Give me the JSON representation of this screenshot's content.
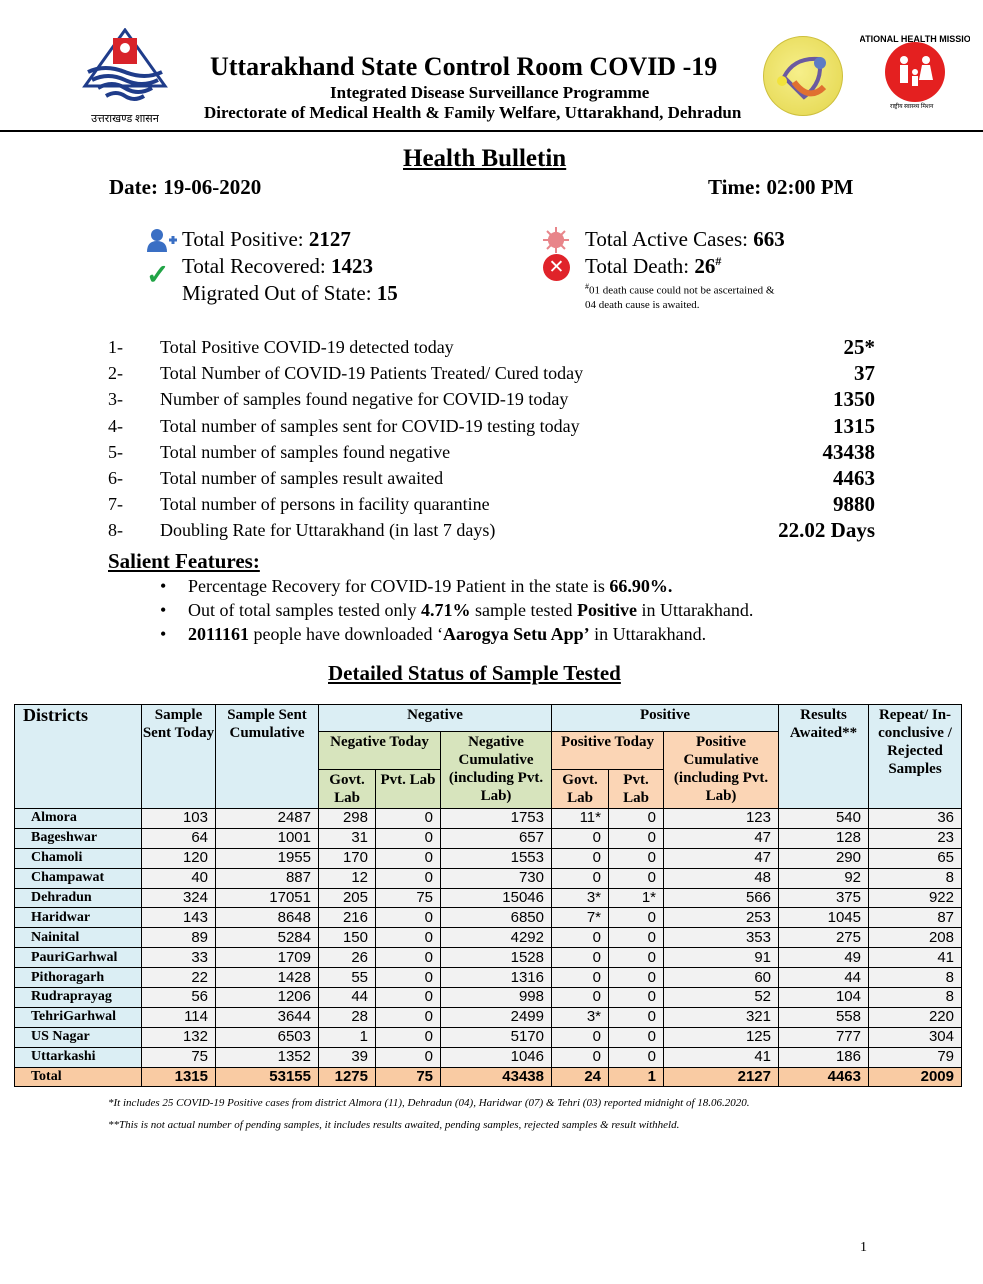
{
  "header": {
    "title": "Uttarakhand State Control Room COVID -19",
    "subtitle1": "Integrated Disease Surveillance Programme",
    "subtitle2": "Directorate of Medical Health & Family Welfare, Uttarakhand, Dehradun",
    "left_logo_caption": "उत्तराखण्ड शासन",
    "nhm_logo_text": "NATIONAL HEALTH MISSION",
    "nhm_logo_caption": "राष्ट्रीय स्वास्थ्य मिशन"
  },
  "bulletin": {
    "title": "Health Bulletin",
    "date": "Date: 19-06-2020",
    "time": "Time: 02:00 PM"
  },
  "summary": {
    "total_positive_label": "Total Positive: ",
    "total_positive": "2127",
    "total_recovered_label": "Total Recovered: ",
    "total_recovered": "1423",
    "migrated_label": "Migrated Out of State: ",
    "migrated": "15",
    "active_label": "Total Active Cases: ",
    "active": "663",
    "death_label": "Total Death: ",
    "death": "26",
    "death_mark": "#",
    "death_note_mark": "#",
    "death_note1": "01 death cause could  not be ascertained &",
    "death_note2": "04 death cause is awaited."
  },
  "stats": [
    {
      "num": "1-",
      "text": "Total Positive COVID-19 detected today",
      "value": "25*"
    },
    {
      "num": "2-",
      "text": "Total Number of COVID-19 Patients Treated/ Cured today",
      "value": "37"
    },
    {
      "num": "3-",
      "text": "Number of samples found negative for COVID-19 today",
      "value": "1350"
    },
    {
      "num": "4-",
      "text": "Total number of samples sent for COVID-19 testing today",
      "value": "1315"
    },
    {
      "num": "5-",
      "text": "Total number of samples found negative",
      "value": "43438"
    },
    {
      "num": "6-",
      "text": "Total number of samples result awaited",
      "value": "4463"
    },
    {
      "num": "7-",
      "text": "Total number of persons in facility quarantine",
      "value": "9880"
    },
    {
      "num": "8-",
      "text": "Doubling Rate for Uttarakhand (in last 7 days)",
      "value": "22.02 Days"
    }
  ],
  "salient": {
    "title": "Salient Features:",
    "items": [
      {
        "a": "Percentage Recovery for COVID-19 Patient in the state is ",
        "b": "66.90%.",
        "c": "",
        "d": "",
        "e": ""
      },
      {
        "a": "Out of total samples tested only ",
        "b": "4.71%",
        "c": " sample tested ",
        "d": "Positive",
        "e": " in Uttarakhand."
      },
      {
        "a": "",
        "b": "2011161",
        "c": " people have downloaded ‘",
        "d": "Aarogya Setu App’",
        "e": " in Uttarakhand."
      }
    ]
  },
  "table": {
    "title": "Detailed Status of Sample Tested",
    "headers": {
      "districts": "Districts",
      "sent_today": "Sample Sent Today",
      "sent_cum": "Sample Sent Cumulative",
      "negative": "Negative",
      "neg_today": "Negative Today",
      "neg_cum": "Negative Cumulative (including Pvt. Lab)",
      "positive": "Positive",
      "pos_today": "Positive Today",
      "pos_cum": "Positive Cumulative (including Pvt. Lab)",
      "govt": "Govt. Lab",
      "pvt": "Pvt. Lab",
      "awaited": "Results Awaited**",
      "repeat": "Repeat/ In-conclusive / Rejected Samples"
    },
    "rows": [
      [
        "Almora",
        "103",
        "2487",
        "298",
        "0",
        "1753",
        "11*",
        "0",
        "123",
        "540",
        "36"
      ],
      [
        "Bageshwar",
        "64",
        "1001",
        "31",
        "0",
        "657",
        "0",
        "0",
        "47",
        "128",
        "23"
      ],
      [
        "Chamoli",
        "120",
        "1955",
        "170",
        "0",
        "1553",
        "0",
        "0",
        "47",
        "290",
        "65"
      ],
      [
        "Champawat",
        "40",
        "887",
        "12",
        "0",
        "730",
        "0",
        "0",
        "48",
        "92",
        "8"
      ],
      [
        "Dehradun",
        "324",
        "17051",
        "205",
        "75",
        "15046",
        "3*",
        "1*",
        "566",
        "375",
        "922"
      ],
      [
        "Haridwar",
        "143",
        "8648",
        "216",
        "0",
        "6850",
        "7*",
        "0",
        "253",
        "1045",
        "87"
      ],
      [
        "Nainital",
        "89",
        "5284",
        "150",
        "0",
        "4292",
        "0",
        "0",
        "353",
        "275",
        "208"
      ],
      [
        "PauriGarhwal",
        "33",
        "1709",
        "26",
        "0",
        "1528",
        "0",
        "0",
        "91",
        "49",
        "41"
      ],
      [
        "Pithoragarh",
        "22",
        "1428",
        "55",
        "0",
        "1316",
        "0",
        "0",
        "60",
        "44",
        "8"
      ],
      [
        "Rudraprayag",
        "56",
        "1206",
        "44",
        "0",
        "998",
        "0",
        "0",
        "52",
        "104",
        "8"
      ],
      [
        "TehriGarhwal",
        "114",
        "3644",
        "28",
        "0",
        "2499",
        "3*",
        "0",
        "321",
        "558",
        "220"
      ],
      [
        "US Nagar",
        "132",
        "6503",
        "1",
        "0",
        "5170",
        "0",
        "0",
        "125",
        "777",
        "304"
      ],
      [
        "Uttarkashi",
        "75",
        "1352",
        "39",
        "0",
        "1046",
        "0",
        "0",
        "41",
        "186",
        "79"
      ]
    ],
    "total": [
      "Total",
      "1315",
      "53155",
      "1275",
      "75",
      "43438",
      "24",
      "1",
      "2127",
      "4463",
      "2009"
    ]
  },
  "footnotes": [
    "*It includes 25 COVID-19 Positive cases from district Almora (11), Dehradun (04), Haridwar (07) & Tehri (03) reported midnight of  18.06.2020.",
    "**This is not actual number of pending samples, it includes results awaited, pending samples, rejected samples & result withheld."
  ],
  "page_number": "1"
}
